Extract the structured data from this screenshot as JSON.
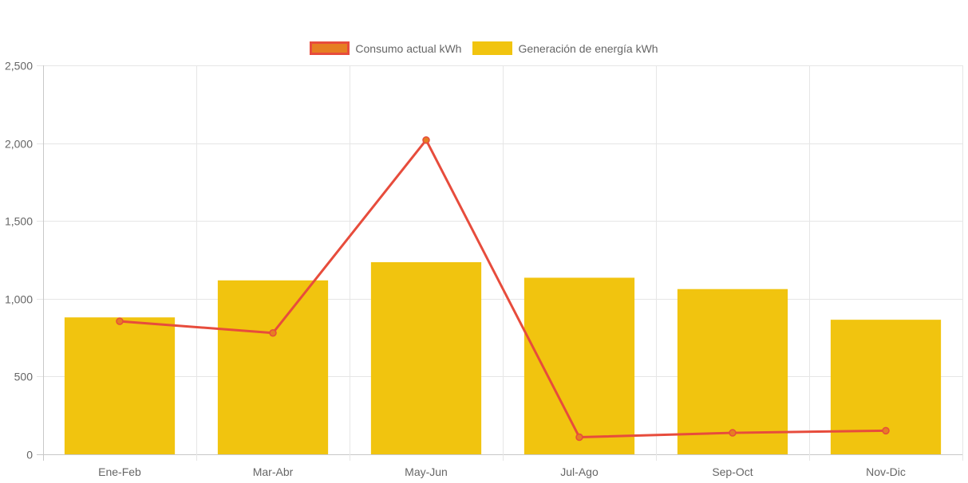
{
  "chart_data": {
    "type": "bar",
    "title": "",
    "xlabel": "",
    "ylabel": "",
    "categories": [
      "Ene-Feb",
      "Mar-Abr",
      "May-Jun",
      "Jul-Ago",
      "Sep-Oct",
      "Nov-Dic"
    ],
    "ylim": [
      0,
      2500
    ],
    "yticks": [
      0,
      500,
      1000,
      1500,
      2000,
      2500
    ],
    "ytick_labels": [
      "0",
      "500",
      "1,000",
      "1,500",
      "2,000",
      "2,500"
    ],
    "grid": true,
    "legend_position": "top-center",
    "series": [
      {
        "name": "Consumo actual kWh",
        "type": "line",
        "color": "#e74c3c",
        "fill": "#e67e22",
        "values": [
          855,
          780,
          2020,
          110,
          138,
          152
        ]
      },
      {
        "name": "Generación de energía kWh",
        "type": "bar",
        "color": "#f1c40f",
        "values": [
          880,
          1118,
          1235,
          1135,
          1062,
          865
        ]
      }
    ]
  }
}
